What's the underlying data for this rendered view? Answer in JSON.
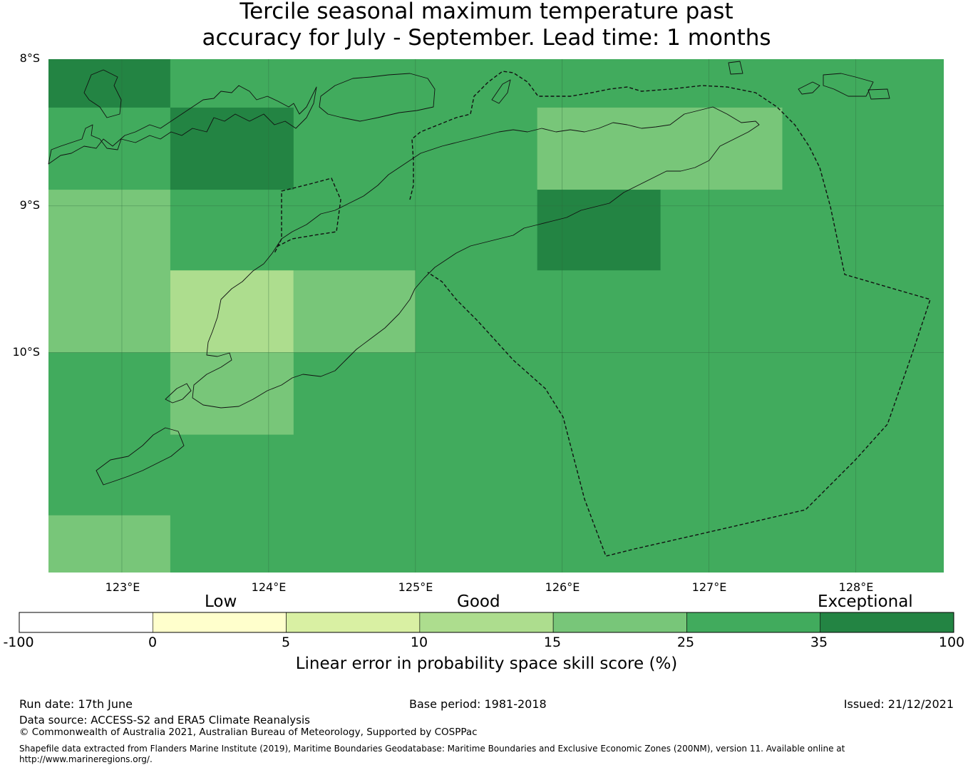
{
  "title": {
    "line1": "Tercile seasonal maximum temperature past",
    "line2": "accuracy for July - September. Lead time: 1 months"
  },
  "map": {
    "lat_labels": [
      "8°S",
      "9°S",
      "10°S"
    ],
    "lon_labels": [
      "123°E",
      "124°E",
      "125°E",
      "126°E",
      "127°E",
      "128°E"
    ],
    "lat_range": [
      -11.5,
      -8.0
    ],
    "lon_range": [
      122.5,
      128.6
    ],
    "grid_cells": [
      {
        "lon0": 122.5,
        "lon1": 123.33,
        "lat0": -8.33,
        "lat1": -8.0,
        "score": 38
      },
      {
        "lon0": 123.33,
        "lon1": 124.17,
        "lat0": -8.89,
        "lat1": -8.33,
        "score": 38
      },
      {
        "lon0": 125.83,
        "lon1": 127.5,
        "lat0": -8.89,
        "lat1": -8.33,
        "score": 20
      },
      {
        "lon0": 125.83,
        "lon1": 126.67,
        "lat0": -9.44,
        "lat1": -8.89,
        "score": 38
      },
      {
        "lon0": 122.5,
        "lon1": 123.33,
        "lat0": -10.0,
        "lat1": -8.89,
        "score": 20
      },
      {
        "lon0": 123.33,
        "lon1": 124.17,
        "lat0": -10.0,
        "lat1": -9.44,
        "score": 13
      },
      {
        "lon0": 124.17,
        "lon1": 125.0,
        "lat0": -10.0,
        "lat1": -9.44,
        "score": 20
      },
      {
        "lon0": 123.33,
        "lon1": 124.17,
        "lat0": -10.56,
        "lat1": -10.0,
        "score": 20
      },
      {
        "lon0": 122.5,
        "lon1": 123.33,
        "lat0": -11.5,
        "lat1": -11.11,
        "score": 20
      }
    ],
    "background_score": 30
  },
  "colorbar": {
    "categories": [
      "Low",
      "Good",
      "Exceptional"
    ],
    "ticks": [
      "-100",
      "0",
      "5",
      "10",
      "15",
      "25",
      "35",
      "100"
    ],
    "colors": [
      "#ffffff",
      "#ffffcc",
      "#d9f0a3",
      "#addd8e",
      "#78c679",
      "#41ab5d",
      "#238443"
    ],
    "label": "Linear error in probability space skill score (%)"
  },
  "footer": {
    "run_date": "Run date: 17th June",
    "base_period": "Base period: 1981-2018",
    "issued": "Issued: 21/12/2021",
    "data_source": "Data source: ACCESS-S2 and ERA5 Climate Reanalysis",
    "copyright": "© Commonwealth of Australia 2021, Australian Bureau of Meteorology, Supported by COSPPac",
    "shapefile_line1": "Shapefile data extracted from Flanders Marine Institute (2019), Maritime Boundaries Geodatabase: Maritime Boundaries and Exclusive Economic Zones (200NM), version 11. Available online at",
    "shapefile_line2": "http://www.marineregions.org/."
  }
}
